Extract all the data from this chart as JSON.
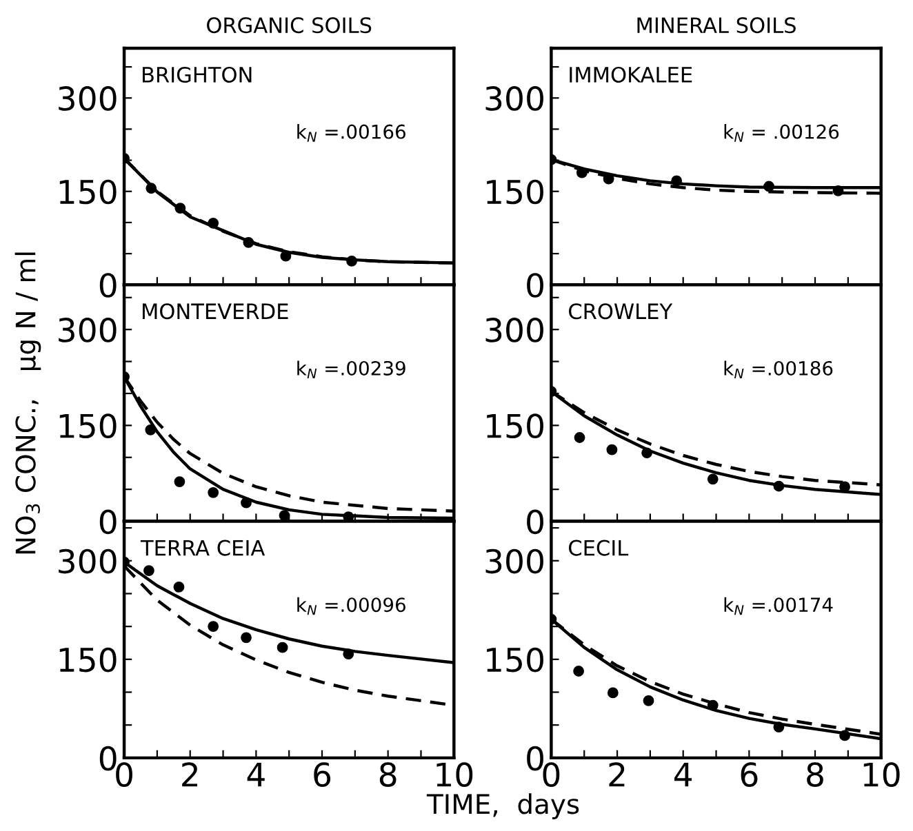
{
  "chart_data": [
    {
      "type": "line",
      "title": "ORGANIC SOILS",
      "annotations": [
        "BRIGHTON",
        "k$_{N}$ =.00166"
      ],
      "xlim": [
        0,
        10
      ],
      "ylim": [
        0,
        380
      ],
      "tick_labels": "y",
      "xticks": [
        {
          "value": 0,
          "label": null
        },
        {
          "value": 1,
          "label": null
        },
        {
          "value": 2,
          "label": null
        },
        {
          "value": 3,
          "label": null
        },
        {
          "value": 4,
          "label": null
        },
        {
          "value": 5,
          "label": null
        },
        {
          "value": 6,
          "label": null
        },
        {
          "value": 7,
          "label": null
        },
        {
          "value": 8,
          "label": null
        },
        {
          "value": 9,
          "label": null
        },
        {
          "value": 10,
          "label": null
        }
      ],
      "yticks": [
        0,
        {
          "value": 50,
          "label": null
        },
        {
          "value": 100,
          "label": null
        },
        150,
        {
          "value": 200,
          "label": null
        },
        {
          "value": 250,
          "label": null
        },
        300,
        {
          "value": 350,
          "label": null
        }
      ],
      "series": [
        {
          "type": "scatter",
          "marker": "circle",
          "color": "#000000",
          "x": [
            0,
            0.82,
            1.7,
            2.7,
            3.77,
            4.9,
            6.9
          ],
          "values": [
            203,
            155,
            123,
            99,
            68,
            46,
            38
          ]
        },
        {
          "type": "line",
          "line_style": "solid",
          "color": "#000000",
          "x": [
            0,
            1,
            2,
            3,
            4,
            5,
            6,
            7,
            8,
            10
          ],
          "values": [
            203,
            149,
            109,
            87,
            65,
            52,
            44,
            40,
            37,
            35
          ]
        },
        {
          "type": "line",
          "line_style": "dashed",
          "color": "#000000",
          "x": [
            0,
            1,
            2,
            3,
            4,
            5,
            6,
            7,
            8,
            10
          ],
          "values": [
            203,
            150,
            111,
            86,
            66,
            53,
            45,
            40,
            37,
            35
          ]
        }
      ]
    },
    {
      "type": "line",
      "title": "MINERAL SOILS",
      "annotations": [
        "IMMOKALEE",
        "k$_{N}$ = .00126"
      ],
      "xlim": [
        0,
        10
      ],
      "ylim": [
        0,
        380
      ],
      "tick_labels": "y",
      "xticks": [
        {
          "value": 0,
          "label": null
        },
        {
          "value": 1,
          "label": null
        },
        {
          "value": 2,
          "label": null
        },
        {
          "value": 3,
          "label": null
        },
        {
          "value": 4,
          "label": null
        },
        {
          "value": 5,
          "label": null
        },
        {
          "value": 6,
          "label": null
        },
        {
          "value": 7,
          "label": null
        },
        {
          "value": 8,
          "label": null
        },
        {
          "value": 9,
          "label": null
        },
        {
          "value": 10,
          "label": null
        }
      ],
      "yticks": [
        0,
        {
          "value": 50,
          "label": null
        },
        {
          "value": 100,
          "label": null
        },
        150,
        {
          "value": 200,
          "label": null
        },
        {
          "value": 250,
          "label": null
        },
        300,
        {
          "value": 350,
          "label": null
        }
      ],
      "series": [
        {
          "type": "scatter",
          "marker": "circle",
          "color": "#000000",
          "x": [
            0,
            0.93,
            1.74,
            3.8,
            6.6,
            8.7
          ],
          "values": [
            201,
            180,
            170,
            167,
            158,
            151
          ]
        },
        {
          "type": "line",
          "line_style": "solid",
          "color": "#000000",
          "x": [
            0,
            1,
            2,
            3,
            4,
            5,
            6,
            8,
            10
          ],
          "values": [
            201,
            186,
            175,
            167,
            162,
            159,
            157,
            156,
            156
          ]
        },
        {
          "type": "line",
          "line_style": "dashed",
          "color": "#000000",
          "x": [
            0,
            1,
            2,
            3,
            4,
            5,
            6,
            8,
            10
          ],
          "values": [
            201,
            183,
            171,
            162,
            156,
            152,
            150,
            148,
            147
          ]
        }
      ]
    },
    {
      "type": "line",
      "ylabel": "NO$_{3}$ CONC.,   μg N / ml",
      "annotations": [
        "MONTEVERDE",
        "k$_{N}$ =.00239"
      ],
      "xlim": [
        0,
        10
      ],
      "ylim": [
        0,
        370
      ],
      "tick_labels": "y",
      "xticks": [
        {
          "value": 0,
          "label": null
        },
        {
          "value": 1,
          "label": null
        },
        {
          "value": 2,
          "label": null
        },
        {
          "value": 3,
          "label": null
        },
        {
          "value": 4,
          "label": null
        },
        {
          "value": 5,
          "label": null
        },
        {
          "value": 6,
          "label": null
        },
        {
          "value": 7,
          "label": null
        },
        {
          "value": 8,
          "label": null
        },
        {
          "value": 9,
          "label": null
        },
        {
          "value": 10,
          "label": null
        }
      ],
      "yticks": [
        0,
        {
          "value": 50,
          "label": null
        },
        {
          "value": 100,
          "label": null
        },
        150,
        {
          "value": 200,
          "label": null
        },
        {
          "value": 250,
          "label": null
        },
        300,
        {
          "value": 350,
          "label": null
        }
      ],
      "series": [
        {
          "type": "scatter",
          "marker": "circle",
          "color": "#000000",
          "x": [
            0,
            0.8,
            1.68,
            2.7,
            3.7,
            4.86,
            6.8
          ],
          "values": [
            226,
            143,
            62,
            45,
            29,
            9,
            7
          ]
        },
        {
          "type": "line",
          "line_style": "solid",
          "color": "#000000",
          "x": [
            0,
            0.5,
            1,
            1.5,
            2,
            3,
            4,
            5,
            6,
            8,
            10
          ],
          "values": [
            226,
            180,
            140,
            108,
            82,
            50,
            30,
            18,
            11,
            6,
            5
          ]
        },
        {
          "type": "line",
          "line_style": "dashed",
          "color": "#000000",
          "x": [
            0,
            0.5,
            1,
            1.5,
            2,
            3,
            4,
            5,
            6,
            8,
            10
          ],
          "values": [
            226,
            188,
            155,
            128,
            106,
            75,
            54,
            40,
            30,
            20,
            16
          ]
        }
      ]
    },
    {
      "type": "line",
      "annotations": [
        "CROWLEY",
        "k$_{N}$ =.00186"
      ],
      "xlim": [
        0,
        10
      ],
      "ylim": [
        0,
        370
      ],
      "tick_labels": "y",
      "xticks": [
        {
          "value": 0,
          "label": null
        },
        {
          "value": 1,
          "label": null
        },
        {
          "value": 2,
          "label": null
        },
        {
          "value": 3,
          "label": null
        },
        {
          "value": 4,
          "label": null
        },
        {
          "value": 5,
          "label": null
        },
        {
          "value": 6,
          "label": null
        },
        {
          "value": 7,
          "label": null
        },
        {
          "value": 8,
          "label": null
        },
        {
          "value": 9,
          "label": null
        },
        {
          "value": 10,
          "label": null
        }
      ],
      "yticks": [
        0,
        {
          "value": 50,
          "label": null
        },
        {
          "value": 100,
          "label": null
        },
        150,
        {
          "value": 200,
          "label": null
        },
        {
          "value": 250,
          "label": null
        },
        300,
        {
          "value": 350,
          "label": null
        }
      ],
      "series": [
        {
          "type": "scatter",
          "marker": "circle",
          "color": "#000000",
          "x": [
            0,
            0.86,
            1.84,
            2.9,
            4.9,
            6.9,
            8.9
          ],
          "values": [
            203,
            131,
            112,
            107,
            66,
            55,
            54
          ]
        },
        {
          "type": "line",
          "line_style": "solid",
          "color": "#000000",
          "x": [
            0,
            1,
            2,
            3,
            4,
            5,
            6,
            7,
            8,
            10
          ],
          "values": [
            203,
            165,
            135,
            110,
            91,
            76,
            64,
            56,
            50,
            42
          ]
        },
        {
          "type": "line",
          "line_style": "dashed",
          "color": "#000000",
          "x": [
            0,
            1,
            2,
            3,
            4,
            5,
            6,
            7,
            8,
            10
          ],
          "values": [
            203,
            170,
            143,
            121,
            103,
            89,
            78,
            70,
            64,
            57
          ]
        }
      ]
    },
    {
      "type": "line",
      "xlabel": "TIME,  days",
      "annotations": [
        "TERRA CEIA",
        "k$_{N}$ =.00096"
      ],
      "xlim": [
        0,
        10
      ],
      "ylim": [
        0,
        360
      ],
      "xticks": [
        0,
        {
          "value": 1,
          "label": null
        },
        2,
        {
          "value": 3,
          "label": null
        },
        4,
        {
          "value": 5,
          "label": null
        },
        6,
        {
          "value": 7,
          "label": null
        },
        8,
        {
          "value": 9,
          "label": null
        },
        10
      ],
      "yticks": [
        0,
        {
          "value": 50,
          "label": null
        },
        {
          "value": 100,
          "label": null
        },
        150,
        {
          "value": 200,
          "label": null
        },
        {
          "value": 250,
          "label": null
        },
        300,
        {
          "value": 350,
          "label": null
        }
      ],
      "series": [
        {
          "type": "scatter",
          "marker": "circle",
          "color": "#000000",
          "x": [
            0,
            0.75,
            1.66,
            2.7,
            3.7,
            4.8,
            6.8
          ],
          "values": [
            298,
            285,
            260,
            200,
            183,
            168,
            158
          ]
        },
        {
          "type": "line",
          "line_style": "solid",
          "color": "#000000",
          "x": [
            0,
            1,
            2,
            3,
            4,
            5,
            6,
            7,
            8,
            10
          ],
          "values": [
            298,
            262,
            235,
            212,
            195,
            181,
            170,
            162,
            156,
            145
          ]
        },
        {
          "type": "line",
          "line_style": "dashed",
          "color": "#000000",
          "x": [
            0,
            1,
            2,
            3,
            4,
            5,
            6,
            7,
            8,
            10
          ],
          "values": [
            292,
            240,
            202,
            172,
            149,
            130,
            115,
            103,
            94,
            80
          ]
        }
      ]
    },
    {
      "type": "line",
      "annotations": [
        "CECIL",
        "k$_{N}$ =.00174"
      ],
      "xlim": [
        0,
        10
      ],
      "ylim": [
        0,
        360
      ],
      "xticks": [
        0,
        {
          "value": 1,
          "label": null
        },
        2,
        {
          "value": 3,
          "label": null
        },
        4,
        {
          "value": 5,
          "label": null
        },
        6,
        {
          "value": 7,
          "label": null
        },
        8,
        {
          "value": 9,
          "label": null
        },
        10
      ],
      "yticks": [
        0,
        {
          "value": 50,
          "label": null
        },
        {
          "value": 100,
          "label": null
        },
        150,
        {
          "value": 200,
          "label": null
        },
        {
          "value": 250,
          "label": null
        },
        300,
        {
          "value": 350,
          "label": null
        }
      ],
      "series": [
        {
          "type": "scatter",
          "marker": "circle",
          "color": "#000000",
          "x": [
            0,
            0.83,
            1.87,
            2.95,
            4.9,
            6.9,
            8.9
          ],
          "values": [
            211,
            132,
            99,
            87,
            80,
            47,
            34
          ]
        },
        {
          "type": "line",
          "line_style": "solid",
          "color": "#000000",
          "x": [
            0,
            1,
            2,
            3,
            4,
            5,
            6,
            7,
            8,
            10
          ],
          "values": [
            211,
            168,
            134,
            108,
            88,
            72,
            60,
            51,
            44,
            29
          ]
        },
        {
          "type": "line",
          "line_style": "dashed",
          "color": "#000000",
          "x": [
            0,
            1,
            2,
            3,
            4,
            5,
            6,
            7,
            8,
            10
          ],
          "values": [
            211,
            172,
            140,
            116,
            97,
            82,
            69,
            59,
            51,
            36
          ]
        }
      ]
    }
  ]
}
